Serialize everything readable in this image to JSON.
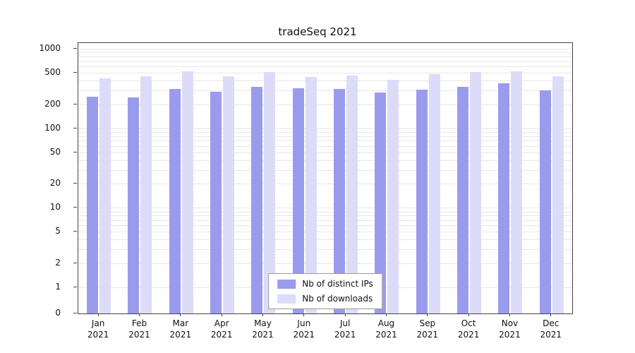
{
  "title": "tradeSeq 2021",
  "chart_data": {
    "type": "bar",
    "title": "tradeSeq 2021",
    "yscale": "log",
    "ylim": [
      0,
      1000
    ],
    "yticks": [
      1000,
      500,
      200,
      100,
      50,
      20,
      10,
      5,
      2,
      1,
      0
    ],
    "grid": true,
    "legend_position": "bottom-center",
    "categories": [
      "Jan 2021",
      "Feb 2021",
      "Mar 2021",
      "Apr 2021",
      "May 2021",
      "Jun 2021",
      "Jul 2021",
      "Aug 2021",
      "Sep 2021",
      "Oct 2021",
      "Nov 2021",
      "Dec 2021"
    ],
    "series": [
      {
        "name": "Nb of distinct IPs",
        "color": "#9b9bee",
        "values": [
          250,
          245,
          310,
          290,
          330,
          320,
          310,
          280,
          305,
          330,
          365,
          300
        ]
      },
      {
        "name": "Nb of downloads",
        "color": "#dcdcf9",
        "values": [
          420,
          450,
          520,
          450,
          505,
          440,
          460,
          410,
          480,
          510,
          520,
          450
        ]
      }
    ]
  },
  "colors": {
    "grid": "#e7e7e7",
    "axis": "#444444",
    "background": "#ffffff"
  }
}
